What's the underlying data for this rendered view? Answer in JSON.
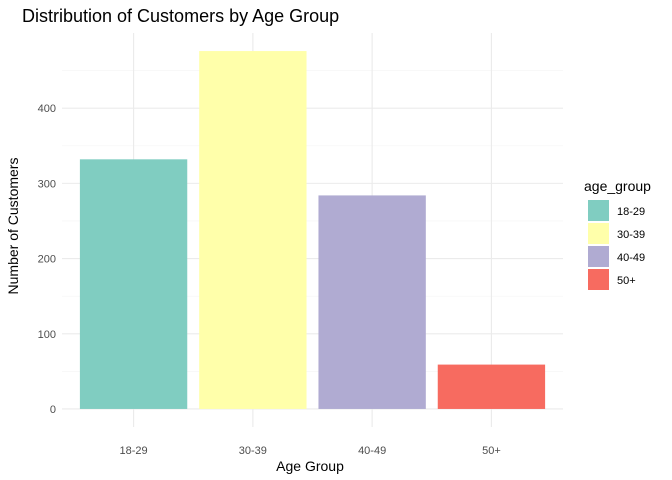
{
  "chart_data": {
    "type": "bar",
    "title": "Distribution of Customers by Age Group",
    "xlabel": "Age Group",
    "ylabel": "Number of Customers",
    "categories": [
      "18-29",
      "30-39",
      "40-49",
      "50+"
    ],
    "values": [
      332,
      476,
      284,
      59
    ],
    "colors": [
      "#80cdc1",
      "#ffffaa",
      "#b0abd2",
      "#f76b60"
    ],
    "ylim": [
      0,
      476
    ],
    "yticks": [
      0,
      100,
      200,
      300,
      400
    ],
    "grid": true,
    "legend": {
      "title": "age_group",
      "placement": "right",
      "entries": [
        "18-29",
        "30-39",
        "40-49",
        "50+"
      ]
    }
  }
}
